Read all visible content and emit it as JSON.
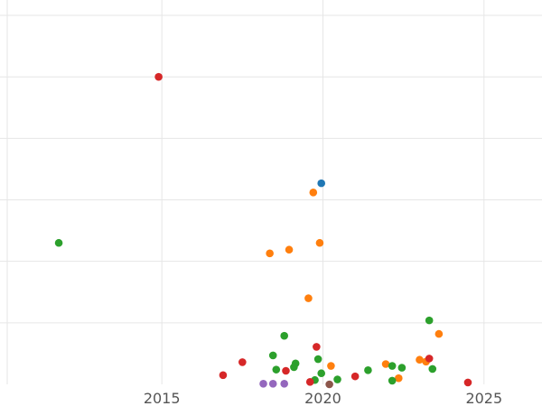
{
  "chart_data": {
    "type": "scatter",
    "title": "",
    "xlabel": "",
    "ylabel": "",
    "grid": true,
    "xlim": [
      2010.2,
      2026.8
    ],
    "ylim": [
      0,
      6.25
    ],
    "x_ticks": [
      "2015",
      "2020",
      "2025"
    ],
    "x_tick_values": [
      2015,
      2020,
      2025
    ],
    "y_grid_values": [
      1,
      2,
      3,
      4,
      5,
      6
    ],
    "series": [
      {
        "color": "#1f77b4",
        "points": [
          [
            2019.95,
            3.27
          ]
        ]
      },
      {
        "color": "#ff7f0e",
        "points": [
          [
            2019.7,
            3.12
          ],
          [
            2018.35,
            2.13
          ],
          [
            2018.95,
            2.19
          ],
          [
            2019.9,
            2.3
          ],
          [
            2019.55,
            1.4
          ],
          [
            2020.25,
            0.3
          ],
          [
            2021.95,
            0.33
          ],
          [
            2022.35,
            0.1
          ],
          [
            2023.0,
            0.4
          ],
          [
            2023.2,
            0.37
          ],
          [
            2023.6,
            0.82
          ]
        ]
      },
      {
        "color": "#2ca02c",
        "points": [
          [
            2011.8,
            2.3
          ],
          [
            2018.8,
            0.79
          ],
          [
            2018.45,
            0.47
          ],
          [
            2018.55,
            0.24
          ],
          [
            2019.15,
            0.34
          ],
          [
            2019.1,
            0.28
          ],
          [
            2019.85,
            0.41
          ],
          [
            2019.95,
            0.18
          ],
          [
            2019.75,
            0.07
          ],
          [
            2020.45,
            0.08
          ],
          [
            2021.4,
            0.23
          ],
          [
            2022.15,
            0.3
          ],
          [
            2022.45,
            0.27
          ],
          [
            2022.15,
            0.06
          ],
          [
            2023.3,
            1.04
          ],
          [
            2023.4,
            0.25
          ]
        ]
      },
      {
        "color": "#d62728",
        "points": [
          [
            2014.9,
            5.0
          ],
          [
            2016.9,
            0.15
          ],
          [
            2017.5,
            0.36
          ],
          [
            2018.85,
            0.22
          ],
          [
            2019.8,
            0.61
          ],
          [
            2019.6,
            0.04
          ],
          [
            2021.0,
            0.13
          ],
          [
            2023.3,
            0.42
          ],
          [
            2024.5,
            0.03
          ]
        ]
      },
      {
        "color": "#9467bd",
        "points": [
          [
            2018.15,
            0.01
          ],
          [
            2018.45,
            0.01
          ],
          [
            2018.8,
            0.01
          ]
        ]
      },
      {
        "color": "#8c564b",
        "points": [
          [
            2020.2,
            0.0
          ]
        ]
      }
    ]
  }
}
